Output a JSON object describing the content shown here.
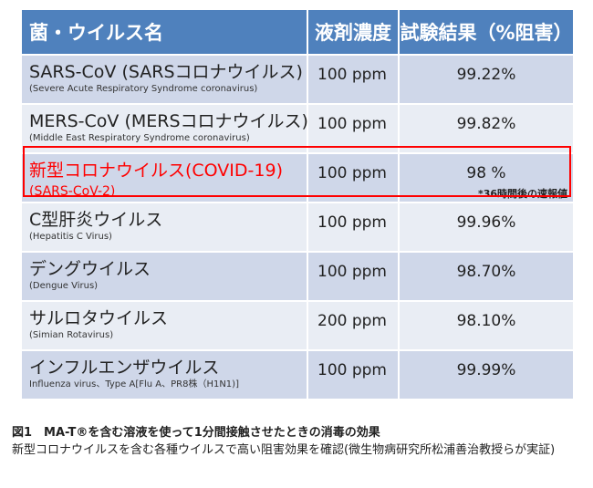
{
  "table": {
    "headers": [
      "菌・ウイルス名",
      "液剤濃度",
      "試験結果（%阻害）"
    ],
    "rows": [
      {
        "name": "SARS-CoV (SARSコロナウイルス)",
        "sub": "(Severe Acute Respiratory Syndrome coronavirus)",
        "conc": "100 ppm",
        "result": "99.22%",
        "note": ""
      },
      {
        "name": "MERS-CoV (MERSコロナウイルス)",
        "sub": "(Middle East Respiratory Syndrome coronavirus)",
        "conc": "100 ppm",
        "result": "99.82%",
        "note": ""
      },
      {
        "name": "新型コロナウイルス(COVID-19)",
        "sub": "(SARS-CoV-2)",
        "conc": "100 ppm",
        "result": "98 %",
        "note": "*36時間後の速報値"
      },
      {
        "name": "C型肝炎ウイルス",
        "sub": "(Hepatitis C Virus)",
        "conc": "100 ppm",
        "result": "99.96%",
        "note": ""
      },
      {
        "name": "デングウイルス",
        "sub": "(Dengue Virus)",
        "conc": "100 ppm",
        "result": "98.70%",
        "note": ""
      },
      {
        "name": "サルロタウイルス",
        "sub": "(Simian Rotavirus)",
        "conc": "200 ppm",
        "result": "98.10%",
        "note": ""
      },
      {
        "name": "インフルエンザウイルス",
        "sub": "Influenza virus、Type A[Flu A、PR8株（H1N1)]",
        "conc": "100 ppm",
        "result": "99.99%",
        "note": ""
      }
    ]
  },
  "caption": {
    "title": "図1　MA-T®を含む溶液を使って1分間接触させたときの消毒の効果",
    "body": "新型コロナウイルスを含む各種ウイルスで高い阻害効果を確認(微生物病研究所松浦善治教授らが実証)"
  },
  "colors": {
    "header": "#4f81bd",
    "row_odd": "#cfd7e9",
    "row_even": "#e9edf4",
    "highlight": "#ff0000"
  }
}
